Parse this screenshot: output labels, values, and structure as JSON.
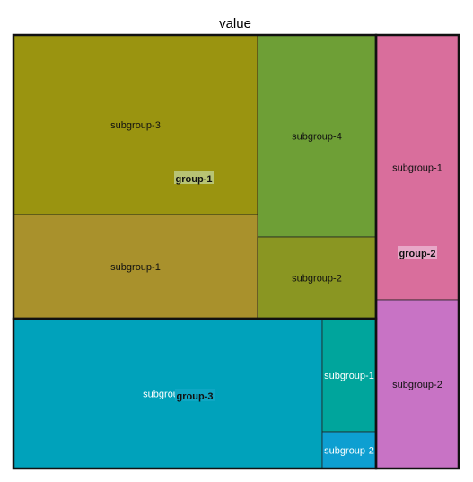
{
  "chart_data": {
    "type": "treemap",
    "title": "value",
    "groups": [
      {
        "name": "group-1",
        "color": "#9a9410",
        "subgroups": [
          {
            "name": "subgroup-3",
            "color": "#9a9410"
          },
          {
            "name": "subgroup-4",
            "color": "#6e9f36"
          },
          {
            "name": "subgroup-1",
            "color": "#a9912c"
          },
          {
            "name": "subgroup-2",
            "color": "#8a9622"
          }
        ]
      },
      {
        "name": "group-2",
        "color": "#d96e9c",
        "subgroups": [
          {
            "name": "subgroup-1",
            "color": "#d96e9c"
          },
          {
            "name": "subgroup-2",
            "color": "#c873c5"
          }
        ]
      },
      {
        "name": "group-3",
        "color": "#00a2bb",
        "subgroups": [
          {
            "name": "subgroup-3",
            "color": "#00a2bb"
          },
          {
            "name": "subgroup-1",
            "color": "#00a59c"
          },
          {
            "name": "subgroup-2",
            "color": "#0d9fd1"
          }
        ]
      }
    ]
  }
}
